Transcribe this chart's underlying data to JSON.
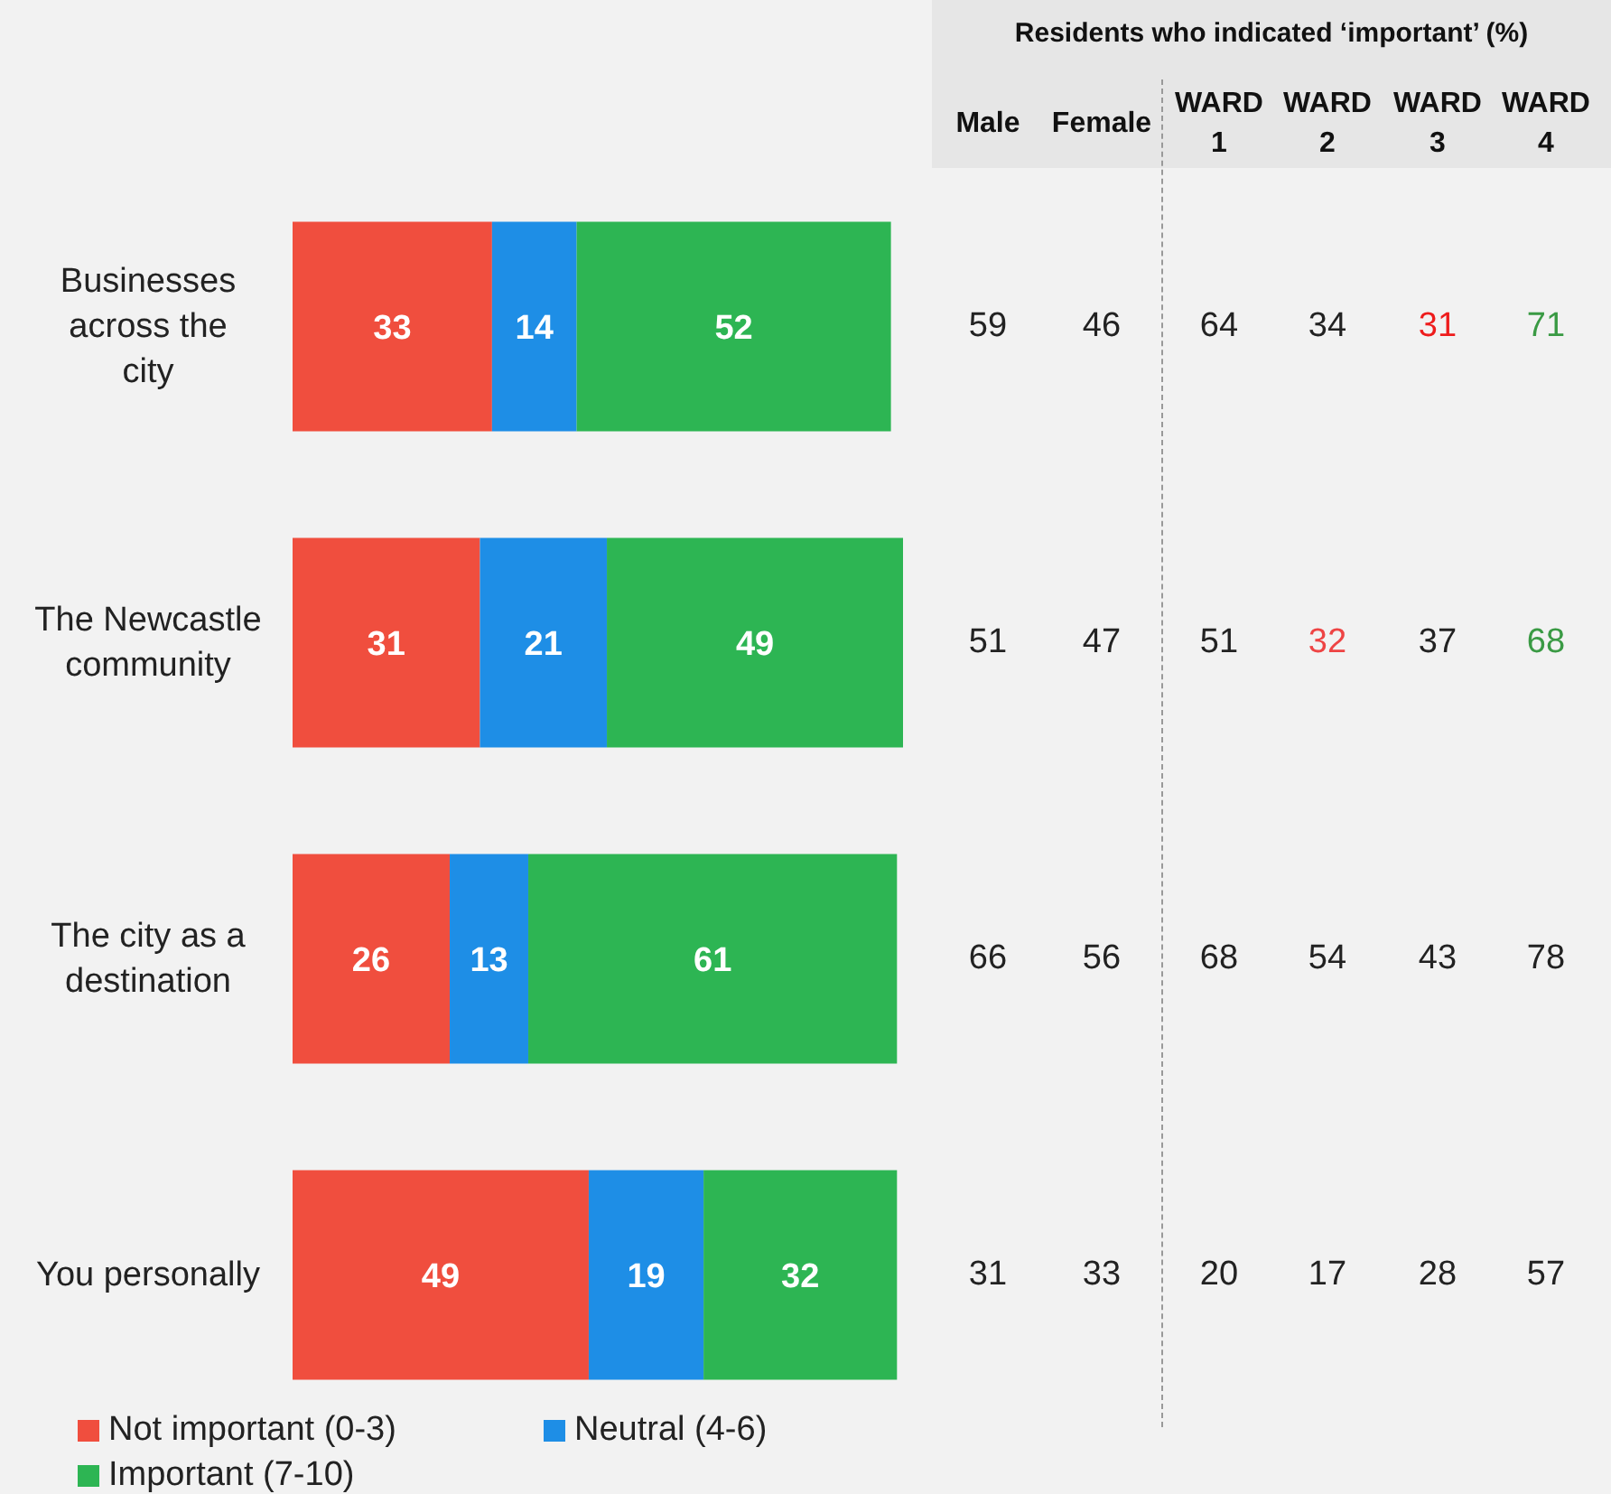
{
  "chart_data": [
    {
      "type": "bar",
      "orientation": "horizontal",
      "stacked": true,
      "data_labels": true,
      "legend": "bottom left",
      "grid": false,
      "categories": [
        "Businesses across the city",
        "The Newcastle community",
        "The city as a destination",
        "You personally"
      ],
      "series": [
        {
          "name": "Not important (0-3)",
          "color": "#f04e3e",
          "values": [
            33,
            31,
            26,
            49
          ]
        },
        {
          "name": "Neutral (4-6)",
          "color": "#1e8ee6",
          "values": [
            14,
            21,
            13,
            19
          ]
        },
        {
          "name": "Important (7-10)",
          "color": "#2db553",
          "values": [
            52,
            49,
            61,
            32
          ]
        }
      ]
    },
    {
      "type": "heatmap",
      "title": "Residents who indicated ‘important’ (%)",
      "data_labels": true,
      "tick_labels": "x",
      "categories": [
        "Male",
        "Female",
        "WARD 1",
        "WARD 2",
        "WARD 3",
        "WARD 4"
      ],
      "y_categories": [
        null,
        null,
        null,
        null
      ],
      "cells": [
        [
          59,
          46,
          64,
          34,
          31,
          71
        ],
        [
          51,
          47,
          51,
          32,
          37,
          68
        ],
        [
          66,
          56,
          68,
          54,
          43,
          78
        ],
        [
          31,
          33,
          20,
          17,
          28,
          57
        ]
      ],
      "colors": [
        [
          "#222222",
          "#222222",
          "#222222",
          "#222222",
          "#ee1c1c",
          "#3a9a44"
        ],
        [
          "#222222",
          "#222222",
          "#222222",
          "#ee4444",
          "#222222",
          "#3a9a44"
        ],
        [
          "#222222",
          "#222222",
          "#222222",
          "#222222",
          "#222222",
          "#222222"
        ],
        [
          "#222222",
          "#222222",
          "#222222",
          "#222222",
          "#222222",
          "#222222"
        ]
      ]
    }
  ]
}
